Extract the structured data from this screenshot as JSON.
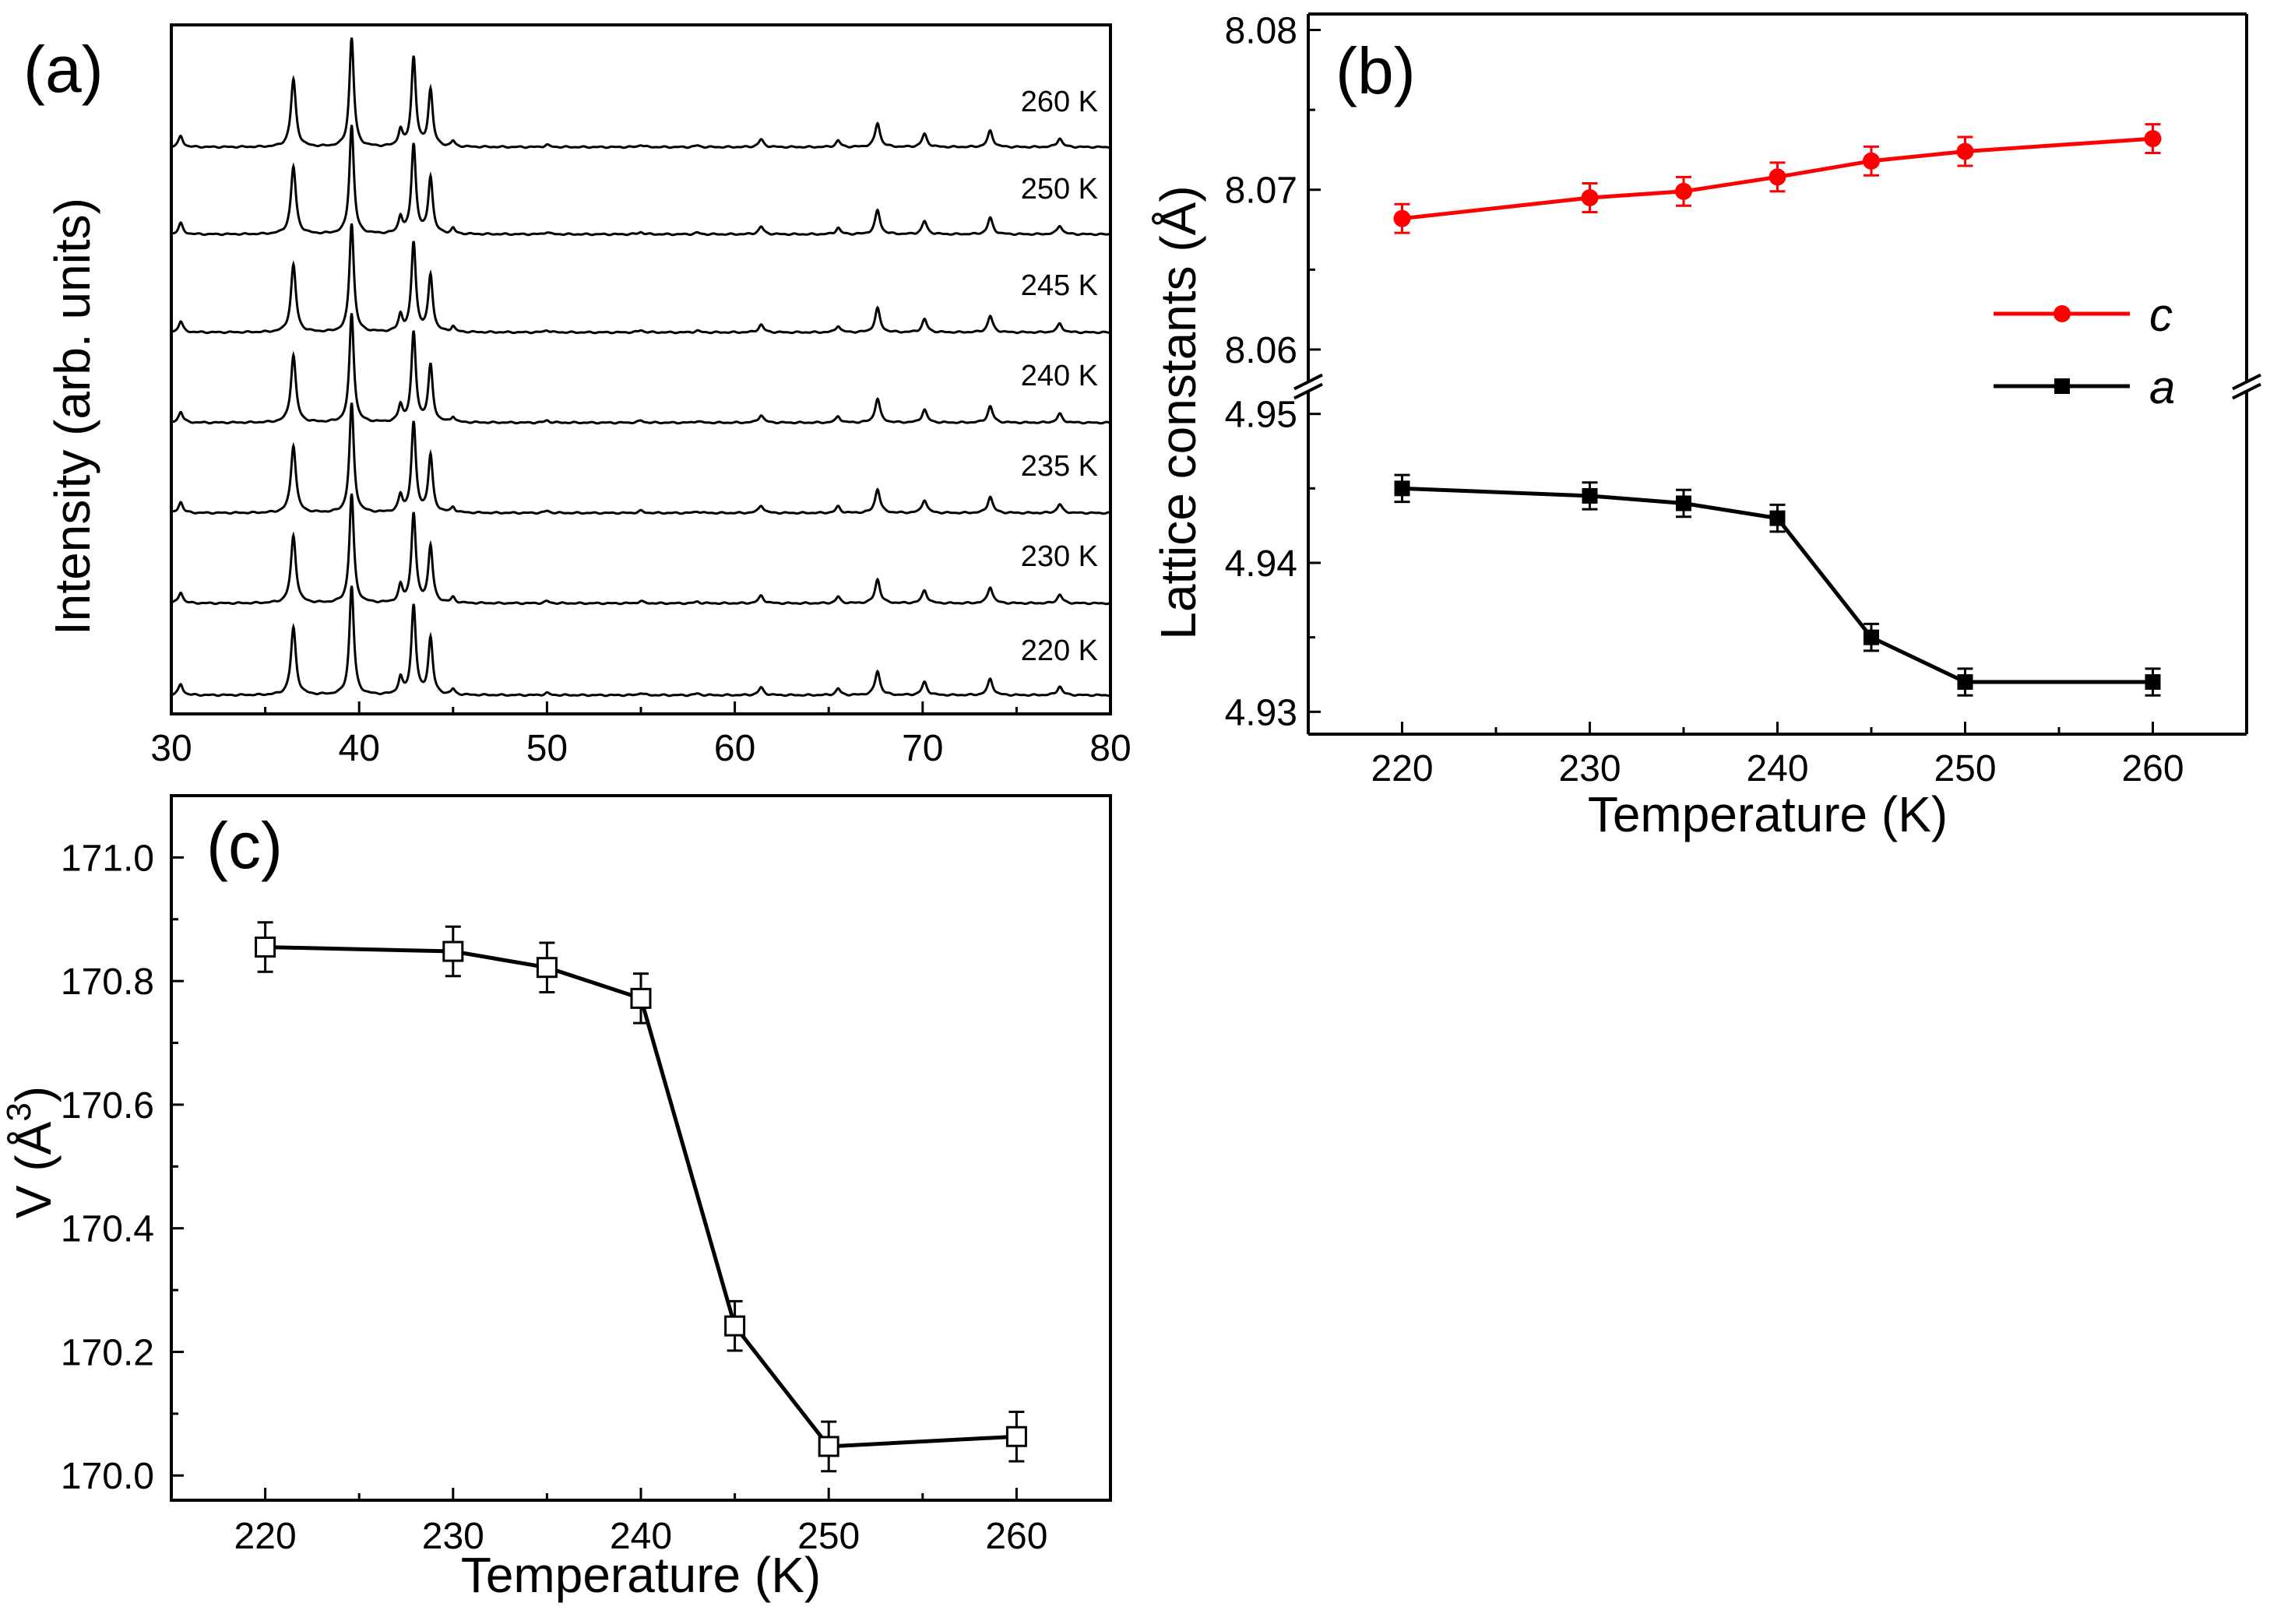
{
  "panels": {
    "a": {
      "label": "(a)",
      "chart_data": {
        "type": "line",
        "title": "",
        "xlabel": "",
        "ylabel": "Intensity (arb. units)",
        "xlim": [
          30,
          80
        ],
        "xticks": [
          30,
          40,
          50,
          60,
          70,
          80
        ],
        "yticks": [],
        "peaks": [
          {
            "pos": 30.5,
            "h": 0.1,
            "w": 0.14
          },
          {
            "pos": 36.5,
            "h": 0.62,
            "w": 0.16
          },
          {
            "pos": 39.6,
            "h": 1.0,
            "w": 0.14
          },
          {
            "pos": 42.2,
            "h": 0.15,
            "w": 0.13
          },
          {
            "pos": 42.9,
            "h": 0.82,
            "w": 0.14
          },
          {
            "pos": 43.8,
            "h": 0.52,
            "w": 0.14
          },
          {
            "pos": 45.0,
            "h": 0.05,
            "w": 0.12
          },
          {
            "pos": 50.0,
            "h": 0.02,
            "w": 0.15
          },
          {
            "pos": 55.0,
            "h": 0.02,
            "w": 0.15
          },
          {
            "pos": 58.0,
            "h": 0.015,
            "w": 0.15
          },
          {
            "pos": 61.4,
            "h": 0.07,
            "w": 0.16
          },
          {
            "pos": 65.5,
            "h": 0.06,
            "w": 0.14
          },
          {
            "pos": 67.6,
            "h": 0.22,
            "w": 0.16
          },
          {
            "pos": 70.1,
            "h": 0.12,
            "w": 0.16
          },
          {
            "pos": 73.6,
            "h": 0.15,
            "w": 0.16
          },
          {
            "pos": 77.3,
            "h": 0.08,
            "w": 0.16
          }
        ],
        "series": [
          {
            "name": "220 K"
          },
          {
            "name": "230 K"
          },
          {
            "name": "235 K"
          },
          {
            "name": "240 K"
          },
          {
            "name": "245 K"
          },
          {
            "name": "250 K"
          },
          {
            "name": "260 K"
          }
        ]
      }
    },
    "b": {
      "label": "(b)",
      "chart_data": {
        "type": "line",
        "title": "",
        "xlabel": "Temperature (K)",
        "ylabel": "Lattice constants (Å)",
        "xlim": [
          215,
          265
        ],
        "xticks": [
          220,
          230,
          240,
          250,
          260
        ],
        "upper": {
          "ylim": [
            8.058,
            8.081
          ],
          "yticks": [
            "8.06",
            "8.07",
            "8.08"
          ]
        },
        "lower": {
          "ylim": [
            4.9285,
            4.9515
          ],
          "yticks": [
            "4.93",
            "4.94",
            "4.95"
          ]
        },
        "series": [
          {
            "name": "c",
            "color": "#ff0000",
            "marker": "circle",
            "x": [
              220,
              230,
              235,
              240,
              245,
              250,
              260
            ],
            "y": [
              8.0682,
              8.0695,
              8.0699,
              8.0708,
              8.0718,
              8.0724,
              8.0732
            ],
            "err": [
              0.0009,
              0.0009,
              0.0009,
              0.0009,
              0.0009,
              0.0009,
              0.0009
            ]
          },
          {
            "name": "a",
            "color": "#000000",
            "marker": "square",
            "x": [
              220,
              230,
              235,
              240,
              245,
              250,
              260
            ],
            "y": [
              4.945,
              4.9445,
              4.944,
              4.943,
              4.935,
              4.932,
              4.932
            ],
            "err": [
              0.0009,
              0.0009,
              0.0009,
              0.0009,
              0.0009,
              0.0009,
              0.0009
            ]
          }
        ],
        "legend": [
          {
            "label": "c",
            "color": "#ff0000",
            "marker": "circle"
          },
          {
            "label": "a",
            "color": "#000000",
            "marker": "square"
          }
        ]
      }
    },
    "c": {
      "label": "(c)",
      "chart_data": {
        "type": "line",
        "title": "",
        "xlabel": "Temperature (K)",
        "ylabel": "V (Å³)",
        "ylabel_main": "V (Å",
        "ylabel_sup": "3",
        "ylabel_close": ")",
        "xlim": [
          215,
          265
        ],
        "ylim": [
          169.96,
          171.1
        ],
        "xticks": [
          220,
          230,
          240,
          250,
          260
        ],
        "yticks": [
          "170.0",
          "170.2",
          "170.4",
          "170.6",
          "170.8",
          "171.0"
        ],
        "series": [
          {
            "name": "V",
            "color": "#000000",
            "marker": "open-square",
            "x": [
              220,
              230,
              235,
              240,
              245,
              250,
              260
            ],
            "y": [
              170.855,
              170.848,
              170.822,
              170.772,
              170.242,
              170.047,
              170.063
            ],
            "err": [
              0.04,
              0.04,
              0.04,
              0.04,
              0.04,
              0.04,
              0.04
            ]
          }
        ]
      }
    }
  }
}
